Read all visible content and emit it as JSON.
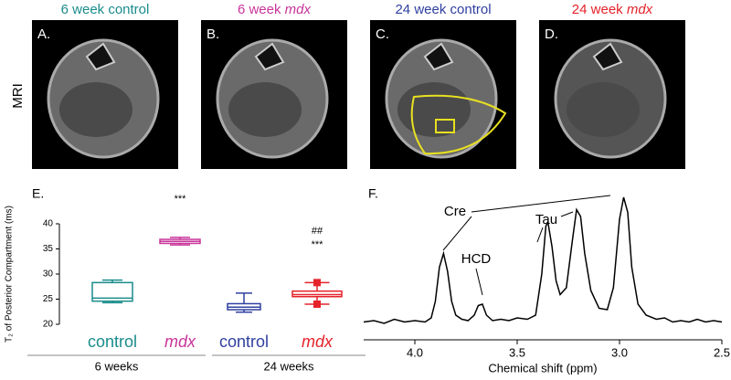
{
  "mri_panels": [
    {
      "letter": "A.",
      "title": "6 week control",
      "title_italic": null,
      "color": "#1a8c8c"
    },
    {
      "letter": "B.",
      "title": "6 week",
      "title_italic": "mdx",
      "color": "#c8359a"
    },
    {
      "letter": "C.",
      "title": "24 week control",
      "title_italic": null,
      "color": "#3040a0"
    },
    {
      "letter": "D.",
      "title": "24 week",
      "title_italic": "mdx",
      "color": "#e5232b"
    }
  ],
  "row_label": "MRI",
  "chart_data": [
    {
      "type": "box",
      "panel": "E.",
      "ylabel": "T₂ of Posterior Compartment (ms)",
      "categories": [
        "control",
        "mdx",
        "control",
        "mdx"
      ],
      "italic": [
        false,
        true,
        false,
        true
      ],
      "colors": [
        "#1a8c8c",
        "#c8359a",
        "#3040a0",
        "#e5232b"
      ],
      "groups": [
        "6 weeks",
        "24 weeks"
      ],
      "boxes": [
        {
          "min": 24.3,
          "q1": 24.6,
          "median": 25.2,
          "q3": 28.3,
          "max": 28.8
        },
        {
          "min": 35.8,
          "q1": 36.1,
          "median": 36.5,
          "q3": 36.9,
          "max": 37.3
        },
        {
          "min": 22.4,
          "q1": 22.9,
          "median": 23.4,
          "q3": 24.1,
          "max": 26.2
        },
        {
          "min": 24.0,
          "q1": 25.5,
          "median": 25.9,
          "q3": 26.6,
          "max": 28.3
        }
      ],
      "annotations": [
        "***",
        "##",
        "***"
      ],
      "ylim": [
        20,
        40
      ],
      "yticks": [
        20,
        25,
        30,
        35,
        40
      ]
    },
    {
      "type": "line",
      "panel": "F.",
      "xlabel": "Chemical shift (ppm)",
      "x": [
        4.25,
        4.2,
        4.15,
        4.1,
        4.05,
        4.0,
        3.95,
        3.92,
        3.9,
        3.88,
        3.86,
        3.84,
        3.82,
        3.8,
        3.77,
        3.74,
        3.71,
        3.69,
        3.67,
        3.65,
        3.62,
        3.58,
        3.54,
        3.5,
        3.45,
        3.41,
        3.38,
        3.36,
        3.35,
        3.33,
        3.31,
        3.29,
        3.26,
        3.23,
        3.21,
        3.19,
        3.17,
        3.14,
        3.1,
        3.06,
        3.03,
        3.0,
        2.98,
        2.96,
        2.94,
        2.91,
        2.87,
        2.82,
        2.78,
        2.74,
        2.7,
        2.66,
        2.62,
        2.58,
        2.54,
        2.5
      ],
      "values": [
        5,
        6,
        4,
        7,
        5,
        6,
        5,
        8,
        20,
        45,
        55,
        42,
        20,
        10,
        7,
        6,
        10,
        17,
        18,
        10,
        6,
        7,
        6,
        8,
        7,
        10,
        40,
        75,
        78,
        60,
        35,
        25,
        30,
        65,
        87,
        82,
        55,
        28,
        15,
        14,
        30,
        80,
        96,
        85,
        45,
        18,
        10,
        7,
        8,
        5,
        6,
        5,
        7,
        5,
        6,
        5
      ],
      "color": "#000000",
      "annotations": [
        "Cre",
        "HCD",
        "Tau"
      ],
      "xlim": [
        4.25,
        2.5
      ],
      "ylim": [
        0,
        100
      ],
      "xticks": [
        {
          "value": 4.0,
          "label": "4.0"
        },
        {
          "value": 3.5,
          "label": "3.5"
        },
        {
          "value": 3.0,
          "label": "3.0"
        },
        {
          "value": 2.5,
          "label": "2.5"
        }
      ]
    }
  ]
}
